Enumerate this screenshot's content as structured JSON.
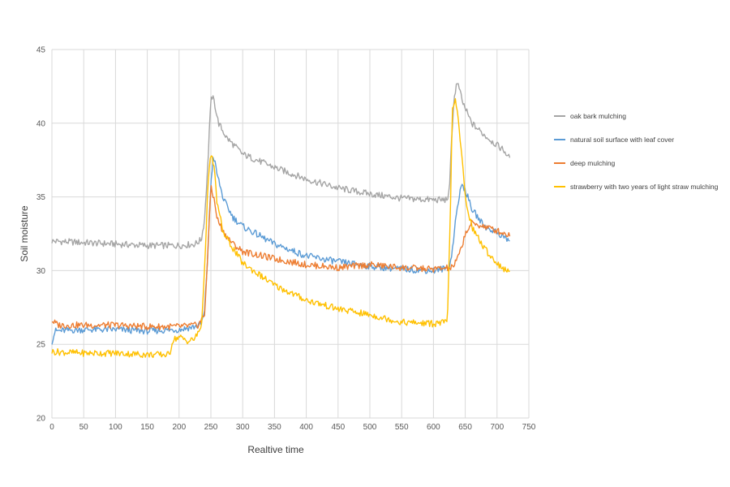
{
  "chart_data": {
    "type": "line",
    "title": "",
    "xlabel": "Realtive time",
    "ylabel": "Soil moisture",
    "xlim": [
      0,
      750
    ],
    "ylim": [
      20,
      45
    ],
    "xticks": [
      0,
      50,
      100,
      150,
      200,
      250,
      300,
      350,
      400,
      450,
      500,
      550,
      600,
      650,
      700,
      750
    ],
    "yticks": [
      20,
      25,
      30,
      35,
      40,
      45
    ],
    "grid": true,
    "legend_position": "right",
    "series": [
      {
        "name": "oak bark mulching",
        "color": "#a5a5a5",
        "x": [
          0,
          50,
          100,
          150,
          200,
          225,
          235,
          240,
          245,
          248,
          251,
          255,
          262,
          275,
          300,
          350,
          400,
          450,
          500,
          550,
          600,
          620,
          625,
          628,
          632,
          636,
          640,
          645,
          650,
          660,
          680,
          700,
          710,
          720
        ],
        "y": [
          32.0,
          31.9,
          31.8,
          31.7,
          31.7,
          31.8,
          32.1,
          33.5,
          37.0,
          40.0,
          41.9,
          41.5,
          40.0,
          39.0,
          37.9,
          37.0,
          36.2,
          35.6,
          35.2,
          34.9,
          34.8,
          34.8,
          35.2,
          38.5,
          41.5,
          42.6,
          42.5,
          41.5,
          41.0,
          40.0,
          39.2,
          38.5,
          38.2,
          37.6
        ]
      },
      {
        "name": "natural soil surface with leaf cover",
        "color": "#5b9bd5",
        "x": [
          0,
          5,
          50,
          100,
          150,
          200,
          225,
          235,
          240,
          245,
          250,
          254,
          260,
          270,
          285,
          300,
          350,
          400,
          450,
          500,
          550,
          600,
          625,
          630,
          635,
          640,
          645,
          650,
          660,
          680,
          700,
          720
        ],
        "y": [
          25.2,
          25.9,
          26.0,
          26.0,
          25.9,
          26.0,
          26.2,
          26.4,
          27.2,
          31.0,
          36.0,
          37.8,
          36.5,
          34.8,
          33.6,
          33.0,
          31.8,
          31.0,
          30.6,
          30.3,
          30.1,
          30.0,
          30.2,
          31.5,
          33.5,
          35.0,
          35.8,
          35.5,
          34.2,
          33.0,
          32.6,
          32.0
        ]
      },
      {
        "name": "deep mulching",
        "color": "#ed7d31",
        "x": [
          0,
          10,
          50,
          100,
          150,
          200,
          230,
          240,
          245,
          250,
          255,
          260,
          270,
          285,
          300,
          350,
          400,
          450,
          500,
          550,
          600,
          630,
          640,
          650,
          660,
          680,
          700,
          720
        ],
        "y": [
          26.6,
          26.3,
          26.3,
          26.3,
          26.2,
          26.2,
          26.3,
          27.0,
          31.0,
          35.8,
          34.8,
          33.5,
          32.6,
          31.8,
          31.3,
          30.8,
          30.4,
          30.2,
          30.4,
          30.2,
          30.1,
          30.2,
          31.0,
          32.5,
          33.2,
          33.0,
          32.7,
          32.4
        ]
      },
      {
        "name": "strawberry with two years of light straw mulching",
        "color": "#ffc000",
        "x": [
          0,
          50,
          100,
          150,
          185,
          190,
          200,
          215,
          225,
          235,
          240,
          245,
          250,
          255,
          260,
          270,
          285,
          300,
          350,
          400,
          450,
          500,
          550,
          600,
          622,
          626,
          630,
          635,
          640,
          645,
          650,
          660,
          680,
          700,
          720
        ],
        "y": [
          24.5,
          24.4,
          24.4,
          24.3,
          24.3,
          25.3,
          25.5,
          25.2,
          25.4,
          26.2,
          30.0,
          35.5,
          38.0,
          37.0,
          34.5,
          32.5,
          31.5,
          30.5,
          29.0,
          28.0,
          27.4,
          27.0,
          26.5,
          26.4,
          26.5,
          33.0,
          41.2,
          41.5,
          39.8,
          37.5,
          35.0,
          33.0,
          31.5,
          30.5,
          29.8
        ]
      }
    ]
  }
}
